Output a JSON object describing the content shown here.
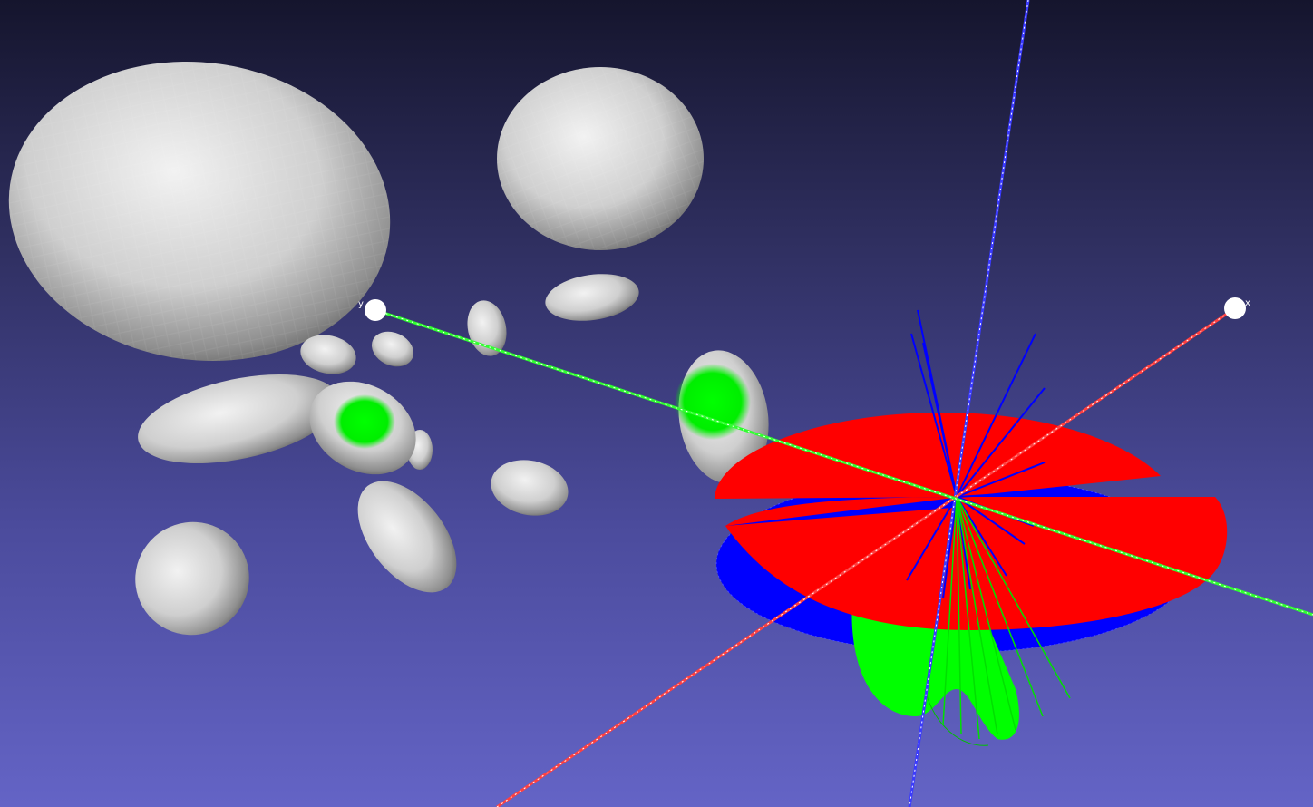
{
  "viewer": {
    "background_top": "#15152d",
    "background_bottom": "#6464c6"
  },
  "axes": {
    "x_label": "x",
    "y_label": "y",
    "colors": {
      "x": "#ff4040",
      "y": "#30ff30",
      "z": "#3a3aff"
    }
  },
  "scene": {
    "mesh_color": "#d9d9d9",
    "highlight_color": "#00f000",
    "glyph_colors": [
      "#ff0000",
      "#0000ff",
      "#00ff00"
    ]
  }
}
